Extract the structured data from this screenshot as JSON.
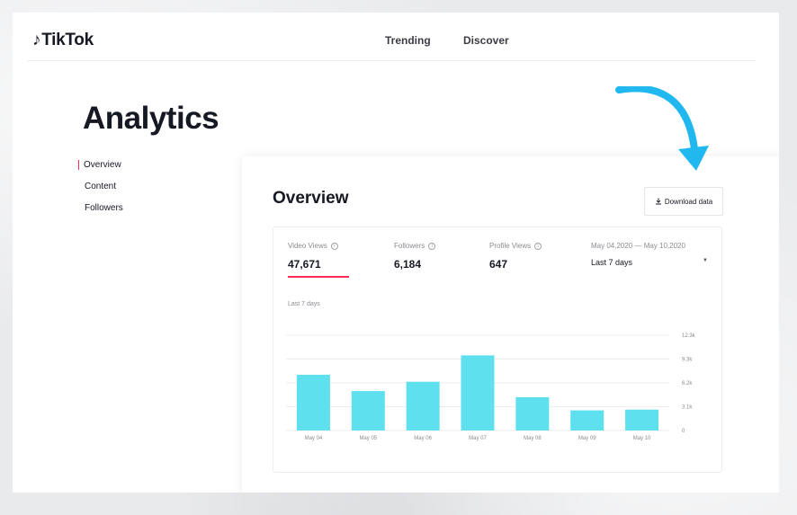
{
  "brand": {
    "logo_glyph": "♪",
    "name": "TikTok"
  },
  "nav": {
    "items": [
      "Trending",
      "Discover"
    ]
  },
  "page": {
    "title": "Analytics"
  },
  "sidebar": {
    "items": [
      "Overview",
      "Content",
      "Followers"
    ],
    "active": "Overview"
  },
  "overview": {
    "title": "Overview",
    "download_label": "Download data",
    "download_icon": "download-icon",
    "metrics": [
      {
        "label": "Video Views",
        "value": "47,671"
      },
      {
        "label": "Followers",
        "value": "6,184"
      },
      {
        "label": "Profile Views",
        "value": "647"
      }
    ],
    "date_range": "May 04,2020 — May 10,2020",
    "range_select": "Last 7 days",
    "chart_subtitle": "Last 7 days"
  },
  "colors": {
    "accent": "#fe2c55",
    "bar": "#5ee0ef",
    "arrow": "#20b8ee"
  },
  "chart_data": {
    "type": "bar",
    "categories": [
      "May 04",
      "May 05",
      "May 06",
      "May 07",
      "May 08",
      "May 09",
      "May 10"
    ],
    "values": [
      7200,
      5100,
      6300,
      9700,
      4300,
      2600,
      2700
    ],
    "yticks": [
      "12.3k",
      "9.3k",
      "6.2k",
      "3.1k",
      "0"
    ],
    "ylim": [
      0,
      12300
    ],
    "grid": true
  }
}
